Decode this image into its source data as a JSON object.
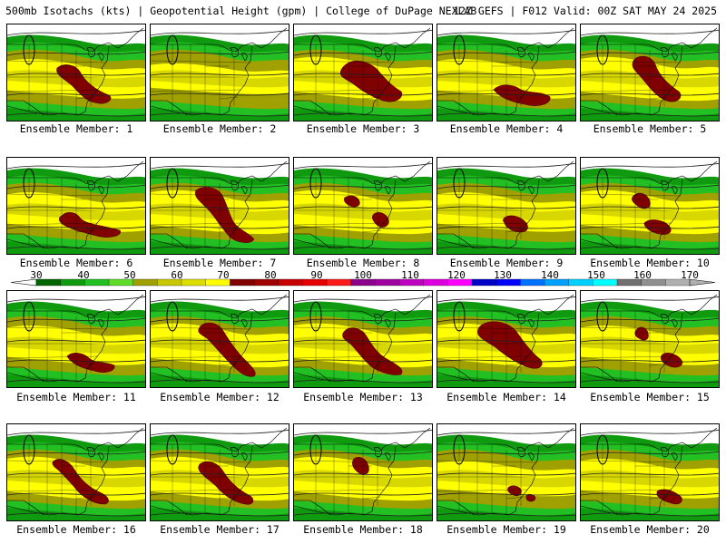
{
  "header": {
    "left": "500mb Isotachs (kts) | Geopotential Height (gpm) | College of DuPage NEXLAB",
    "right": "12Z GEFS | F012 Valid: 00Z SAT MAY 24 2025"
  },
  "colorbar": {
    "ticks": [
      "30",
      "40",
      "50",
      "60",
      "70",
      "80",
      "90",
      "100",
      "110",
      "120",
      "130",
      "140",
      "150",
      "160",
      "170"
    ],
    "colors": [
      "#006400",
      "#109a10",
      "#22c022",
      "#5edc28",
      "#a0a000",
      "#c8c800",
      "#dddd00",
      "#ffff00",
      "#800000",
      "#a00000",
      "#c80000",
      "#e60000",
      "#ff1a1a",
      "#8b008b",
      "#a000a0",
      "#c000c0",
      "#dd00dd",
      "#ff00ff",
      "#0000c8",
      "#0000ff",
      "#0070ff",
      "#00a0ff",
      "#00d0ff",
      "#00ffff",
      "#707070",
      "#909090",
      "#b0b0b0"
    ]
  },
  "members": [
    {
      "label": "Ensemble Member: 1"
    },
    {
      "label": "Ensemble Member: 2"
    },
    {
      "label": "Ensemble Member: 3"
    },
    {
      "label": "Ensemble Member: 4"
    },
    {
      "label": "Ensemble Member: 5"
    },
    {
      "label": "Ensemble Member: 6"
    },
    {
      "label": "Ensemble Member: 7"
    },
    {
      "label": "Ensemble Member: 8"
    },
    {
      "label": "Ensemble Member: 9"
    },
    {
      "label": "Ensemble Member: 10"
    },
    {
      "label": "Ensemble Member: 11"
    },
    {
      "label": "Ensemble Member: 12"
    },
    {
      "label": "Ensemble Member: 13"
    },
    {
      "label": "Ensemble Member: 14"
    },
    {
      "label": "Ensemble Member: 15"
    },
    {
      "label": "Ensemble Member: 16"
    },
    {
      "label": "Ensemble Member: 17"
    },
    {
      "label": "Ensemble Member: 18"
    },
    {
      "label": "Ensemble Member: 19"
    },
    {
      "label": "Ensemble Member: 20"
    }
  ]
}
